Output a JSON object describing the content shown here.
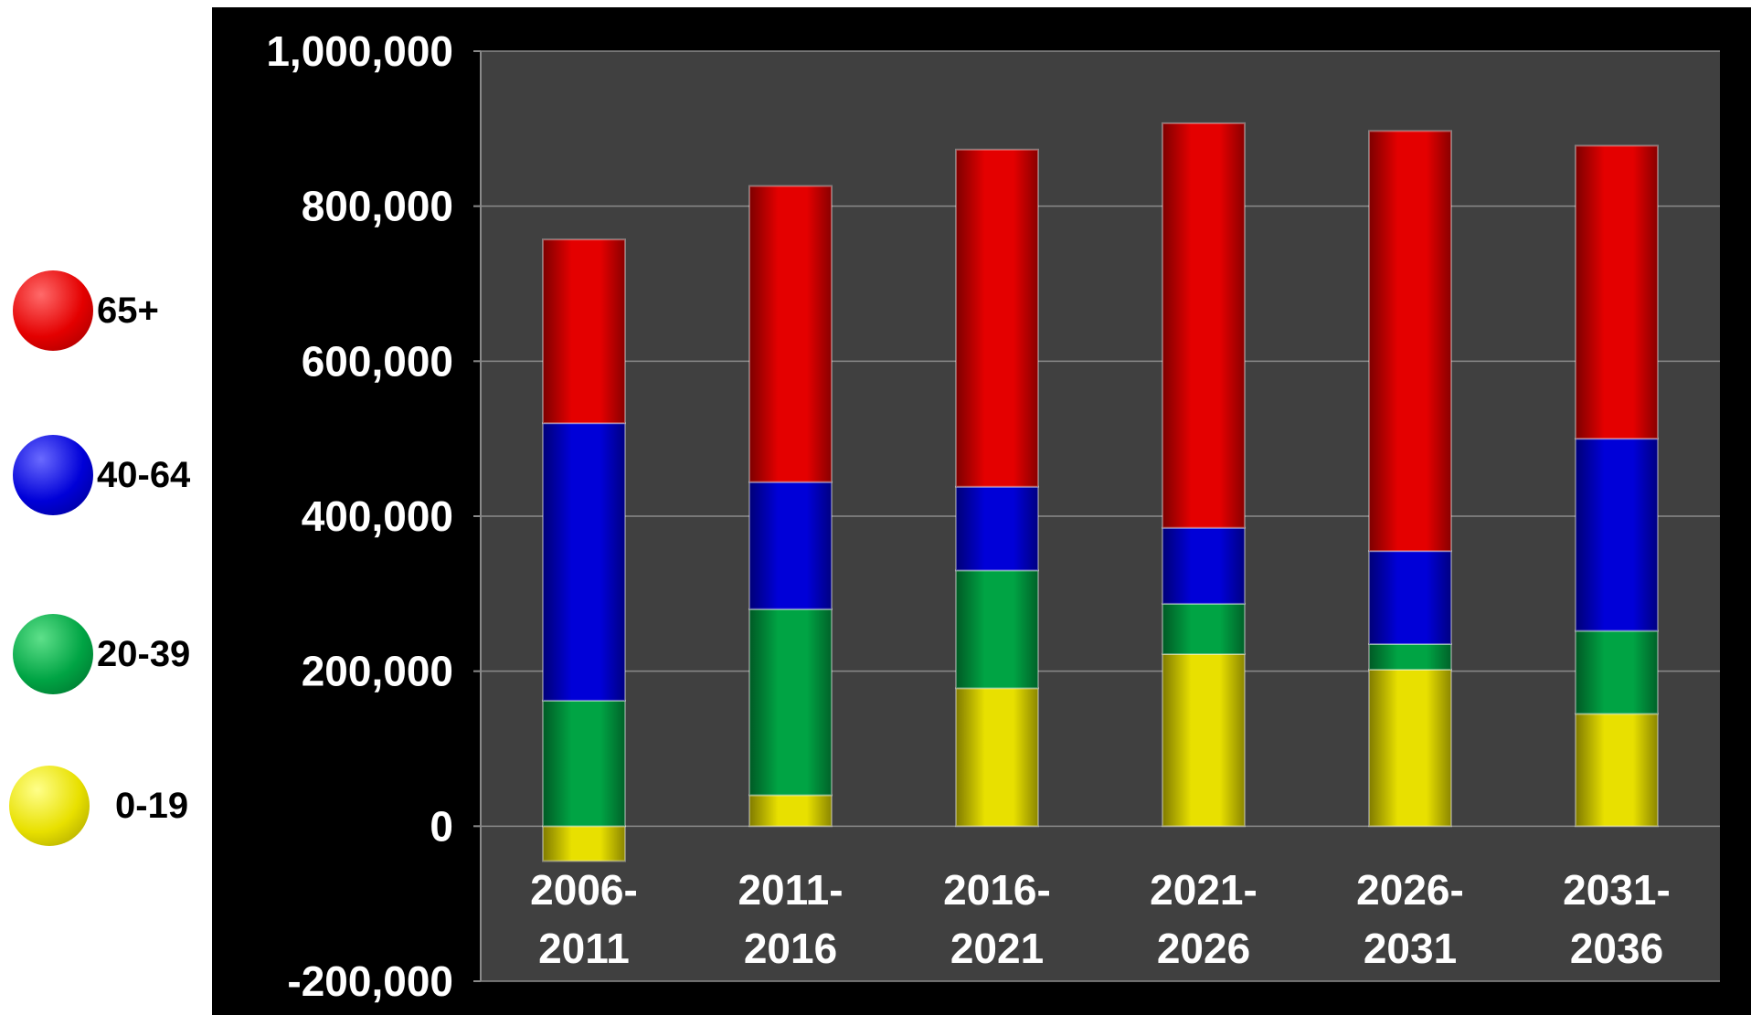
{
  "legend": [
    {
      "label": "65+",
      "color": "#e40000"
    },
    {
      "label": "40-64",
      "color": "#0000d8"
    },
    {
      "label": "20-39",
      "color": "#00a444"
    },
    {
      "label": "0-19",
      "color": "#e8e000"
    }
  ],
  "chart_data": {
    "type": "bar",
    "stacked": true,
    "title": "",
    "xlabel": "",
    "ylabel": "",
    "ylim": [
      -200000,
      1000000
    ],
    "yticks": [
      -200000,
      0,
      200000,
      400000,
      600000,
      800000,
      1000000
    ],
    "ytick_labels": [
      "-200,000",
      "0",
      "200,000",
      "400,000",
      "600,000",
      "800,000",
      "1,000,000"
    ],
    "categories": [
      [
        "2006-",
        "2011"
      ],
      [
        "2011-",
        "2016"
      ],
      [
        "2016-",
        "2021"
      ],
      [
        "2021-",
        "2026"
      ],
      [
        "2026-",
        "2031"
      ],
      [
        "2031-",
        "2036"
      ]
    ],
    "grid": true,
    "legend_position": "left",
    "series": [
      {
        "name": "0-19",
        "color": "#e8e000",
        "values": [
          -45000,
          40000,
          178000,
          222000,
          202000,
          145000
        ]
      },
      {
        "name": "20-39",
        "color": "#00a444",
        "values": [
          162000,
          240000,
          152000,
          65000,
          33000,
          107000
        ]
      },
      {
        "name": "40-64",
        "color": "#0000d8",
        "values": [
          358000,
          164000,
          108000,
          98000,
          120000,
          248000
        ]
      },
      {
        "name": "65+",
        "color": "#e40000",
        "values": [
          237000,
          382000,
          435000,
          522000,
          542000,
          378000
        ]
      }
    ]
  }
}
